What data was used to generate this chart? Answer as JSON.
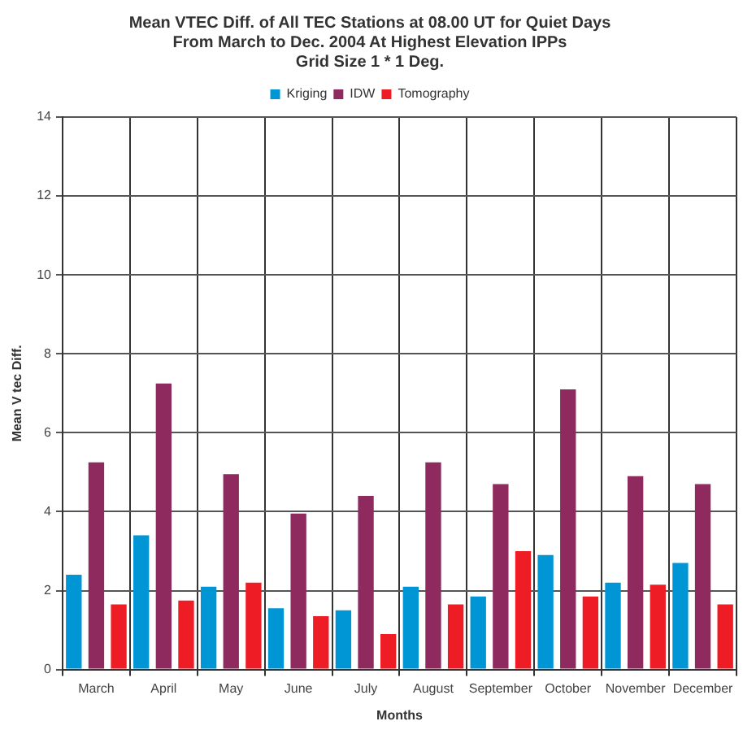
{
  "chart_data": {
    "type": "bar",
    "title": [
      "Mean VTEC Diff. of All TEC Stations at 08.00 UT for Quiet Days",
      "From March to Dec. 2004 At Highest Elevation IPPs",
      "Grid Size 1 * 1 Deg."
    ],
    "xlabel": "Months",
    "ylabel": "Mean V tec Diff.",
    "categories": [
      "March",
      "April",
      "May",
      "June",
      "July",
      "August",
      "September",
      "October",
      "November",
      "December"
    ],
    "series": [
      {
        "name": "Kriging",
        "color": "#0096d6",
        "values": [
          2.4,
          3.4,
          2.1,
          1.55,
          1.5,
          2.1,
          1.85,
          2.9,
          2.2,
          2.7
        ]
      },
      {
        "name": "IDW",
        "color": "#8e2a5e",
        "values": [
          5.25,
          7.25,
          4.95,
          3.95,
          4.4,
          5.25,
          4.7,
          7.1,
          4.9,
          4.7
        ]
      },
      {
        "name": "Tomography",
        "color": "#ee1c25",
        "values": [
          1.65,
          1.75,
          2.2,
          1.35,
          0.9,
          1.65,
          3.0,
          1.85,
          2.15,
          1.65
        ]
      }
    ],
    "ylim": [
      0,
      14
    ],
    "yticks": [
      0,
      2,
      4,
      6,
      8,
      10,
      12,
      14
    ],
    "grid": true,
    "legend": "top"
  }
}
